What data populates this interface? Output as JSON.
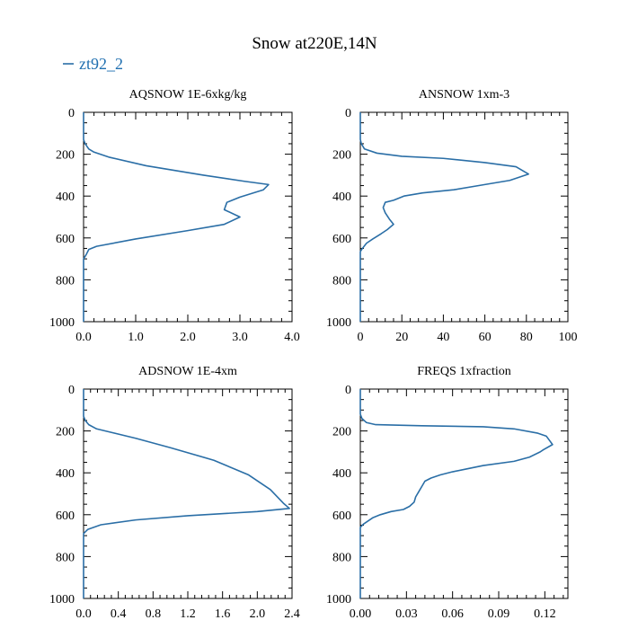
{
  "title": "Snow at220E,14N",
  "legend": {
    "label": "zt92_2",
    "color": "#2a6ea6"
  },
  "chart_data": [
    {
      "type": "line",
      "title": "AQSNOW  1E-6xkg/kg",
      "xlim": [
        0,
        4.0
      ],
      "ylim": [
        1000,
        0
      ],
      "xticks": [
        0,
        1.0,
        2.0,
        3.0,
        4.0
      ],
      "xtick_labels": [
        "0.0",
        "1.0",
        "2.0",
        "3.0",
        "4.0"
      ],
      "yticks": [
        0,
        200,
        400,
        600,
        800,
        1000
      ],
      "ytick_labels": [
        "0",
        "200",
        "400",
        "600",
        "800",
        "1000"
      ],
      "series": [
        {
          "name": "zt92_2",
          "points": [
            [
              0,
              0
            ],
            [
              0,
              130
            ],
            [
              0.03,
              150
            ],
            [
              0.1,
              175
            ],
            [
              0.2,
              190
            ],
            [
              0.5,
              215
            ],
            [
              1.2,
              255
            ],
            [
              2.3,
              300
            ],
            [
              3.1,
              330
            ],
            [
              3.55,
              345
            ],
            [
              3.45,
              370
            ],
            [
              3.0,
              405
            ],
            [
              2.75,
              430
            ],
            [
              2.7,
              465
            ],
            [
              3.0,
              500
            ],
            [
              2.7,
              535
            ],
            [
              2.0,
              565
            ],
            [
              1.0,
              605
            ],
            [
              0.25,
              640
            ],
            [
              0.1,
              655
            ],
            [
              0.05,
              680
            ],
            [
              0,
              700
            ],
            [
              0,
              1000
            ]
          ]
        }
      ]
    },
    {
      "type": "line",
      "title": "ANSNOW  1xm-3",
      "xlim": [
        0,
        100
      ],
      "ylim": [
        1000,
        0
      ],
      "xticks": [
        0,
        20,
        40,
        60,
        80,
        100
      ],
      "xtick_labels": [
        "0",
        "20",
        "40",
        "60",
        "80",
        "100"
      ],
      "yticks": [
        0,
        200,
        400,
        600,
        800,
        1000
      ],
      "ytick_labels": [
        "0",
        "200",
        "400",
        "600",
        "800",
        "1000"
      ],
      "series": [
        {
          "name": "zt92_2",
          "points": [
            [
              0,
              0
            ],
            [
              0,
              130
            ],
            [
              0.5,
              150
            ],
            [
              2,
              175
            ],
            [
              8,
              195
            ],
            [
              20,
              210
            ],
            [
              40,
              220
            ],
            [
              60,
              240
            ],
            [
              75,
              260
            ],
            [
              81,
              295
            ],
            [
              72,
              325
            ],
            [
              60,
              345
            ],
            [
              45,
              370
            ],
            [
              30,
              385
            ],
            [
              21,
              400
            ],
            [
              16,
              420
            ],
            [
              12,
              430
            ],
            [
              11,
              455
            ],
            [
              12,
              480
            ],
            [
              14,
              510
            ],
            [
              16,
              535
            ],
            [
              13,
              560
            ],
            [
              10,
              580
            ],
            [
              6,
              605
            ],
            [
              3,
              625
            ],
            [
              1,
              650
            ],
            [
              0,
              665
            ],
            [
              0,
              1000
            ]
          ]
        }
      ]
    },
    {
      "type": "line",
      "title": "ADSNOW  1E-4xm",
      "xlim": [
        0,
        2.4
      ],
      "ylim": [
        1000,
        0
      ],
      "xticks": [
        0,
        0.4,
        0.8,
        1.2,
        1.6,
        2.0,
        2.4
      ],
      "xtick_labels": [
        "0.0",
        "0.4",
        "0.8",
        "1.2",
        "1.6",
        "2.0",
        "2.4"
      ],
      "yticks": [
        0,
        200,
        400,
        600,
        800,
        1000
      ],
      "ytick_labels": [
        "0",
        "200",
        "400",
        "600",
        "800",
        "1000"
      ],
      "series": [
        {
          "name": "zt92_2",
          "points": [
            [
              0,
              0
            ],
            [
              0,
              130
            ],
            [
              0.02,
              150
            ],
            [
              0.06,
              170
            ],
            [
              0.15,
              190
            ],
            [
              0.3,
              205
            ],
            [
              0.6,
              235
            ],
            [
              1.0,
              280
            ],
            [
              1.5,
              340
            ],
            [
              1.9,
              410
            ],
            [
              2.15,
              480
            ],
            [
              2.3,
              545
            ],
            [
              2.37,
              570
            ],
            [
              2.0,
              585
            ],
            [
              1.2,
              605
            ],
            [
              0.6,
              625
            ],
            [
              0.2,
              648
            ],
            [
              0.05,
              670
            ],
            [
              0,
              690
            ],
            [
              0,
              1000
            ]
          ]
        }
      ]
    },
    {
      "type": "line",
      "title": "FREQS  1xfraction",
      "xlim": [
        0,
        0.135
      ],
      "ylim": [
        1000,
        0
      ],
      "xticks": [
        0,
        0.03,
        0.06,
        0.09,
        0.12
      ],
      "xtick_labels": [
        "0.00",
        "0.03",
        "0.06",
        "0.09",
        "0.12"
      ],
      "yticks": [
        0,
        200,
        400,
        600,
        800,
        1000
      ],
      "ytick_labels": [
        "0",
        "200",
        "400",
        "600",
        "800",
        "1000"
      ],
      "series": [
        {
          "name": "zt92_2",
          "points": [
            [
              0,
              0
            ],
            [
              0,
              120
            ],
            [
              0.001,
              140
            ],
            [
              0.004,
              160
            ],
            [
              0.01,
              170
            ],
            [
              0.04,
              175
            ],
            [
              0.08,
              180
            ],
            [
              0.1,
              190
            ],
            [
              0.115,
              210
            ],
            [
              0.121,
              225
            ],
            [
              0.123,
              245
            ],
            [
              0.125,
              265
            ],
            [
              0.119,
              290
            ],
            [
              0.117,
              300
            ],
            [
              0.11,
              325
            ],
            [
              0.1,
              345
            ],
            [
              0.08,
              365
            ],
            [
              0.07,
              380
            ],
            [
              0.06,
              395
            ],
            [
              0.052,
              410
            ],
            [
              0.046,
              425
            ],
            [
              0.042,
              440
            ],
            [
              0.04,
              465
            ],
            [
              0.038,
              490
            ],
            [
              0.036,
              515
            ],
            [
              0.035,
              540
            ],
            [
              0.032,
              560
            ],
            [
              0.028,
              575
            ],
            [
              0.02,
              585
            ],
            [
              0.013,
              600
            ],
            [
              0.008,
              615
            ],
            [
              0.005,
              630
            ],
            [
              0.002,
              645
            ],
            [
              0,
              660
            ],
            [
              0,
              1000
            ]
          ]
        }
      ]
    }
  ]
}
